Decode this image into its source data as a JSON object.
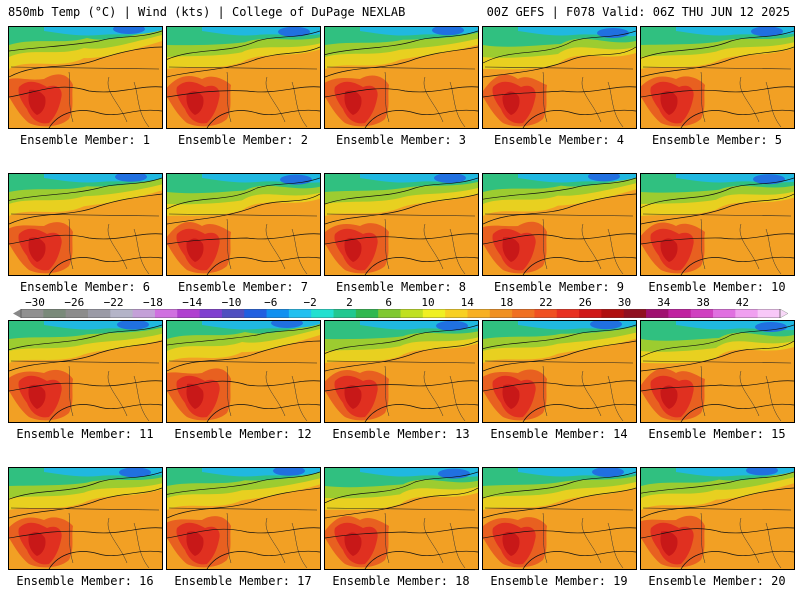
{
  "header": {
    "left": "850mb Temp (°C) | Wind (kts) | College of DuPage NEXLAB",
    "right": "00Z GEFS | F078 Valid: 06Z THU JUN 12 2025"
  },
  "members": [
    {
      "label": "Ensemble Member: 1"
    },
    {
      "label": "Ensemble Member: 2"
    },
    {
      "label": "Ensemble Member: 3"
    },
    {
      "label": "Ensemble Member: 4"
    },
    {
      "label": "Ensemble Member: 5"
    },
    {
      "label": "Ensemble Member: 6"
    },
    {
      "label": "Ensemble Member: 7"
    },
    {
      "label": "Ensemble Member: 8"
    },
    {
      "label": "Ensemble Member: 9"
    },
    {
      "label": "Ensemble Member: 10"
    },
    {
      "label": "Ensemble Member: 11"
    },
    {
      "label": "Ensemble Member: 12"
    },
    {
      "label": "Ensemble Member: 13"
    },
    {
      "label": "Ensemble Member: 14"
    },
    {
      "label": "Ensemble Member: 15"
    },
    {
      "label": "Ensemble Member: 16"
    },
    {
      "label": "Ensemble Member: 17"
    },
    {
      "label": "Ensemble Member: 18"
    },
    {
      "label": "Ensemble Member: 19"
    },
    {
      "label": "Ensemble Member: 20"
    }
  ],
  "colorbar": {
    "tick_labels": [
      "−30",
      "−26",
      "−22",
      "−18",
      "−14",
      "−10",
      "−6",
      "−2",
      "2",
      "6",
      "10",
      "14",
      "18",
      "22",
      "26",
      "30",
      "34",
      "38",
      "42"
    ],
    "colors": [
      "#909090",
      "#7a8a7a",
      "#8c8c8c",
      "#9a9aa6",
      "#b4b4c8",
      "#c4a0d8",
      "#d070e0",
      "#b040d0",
      "#8040d0",
      "#5050c0",
      "#2060e0",
      "#1090f0",
      "#20c0f0",
      "#20e0d0",
      "#20c890",
      "#30b850",
      "#80c830",
      "#c0e020",
      "#f0f020",
      "#f8d020",
      "#f8b020",
      "#f09020",
      "#f07020",
      "#f05020",
      "#e83020",
      "#d01818",
      "#b01010",
      "#901020",
      "#a01070",
      "#c020a0",
      "#d040c0",
      "#e070e0",
      "#f0a0f0",
      "#f8c8f8"
    ]
  }
}
